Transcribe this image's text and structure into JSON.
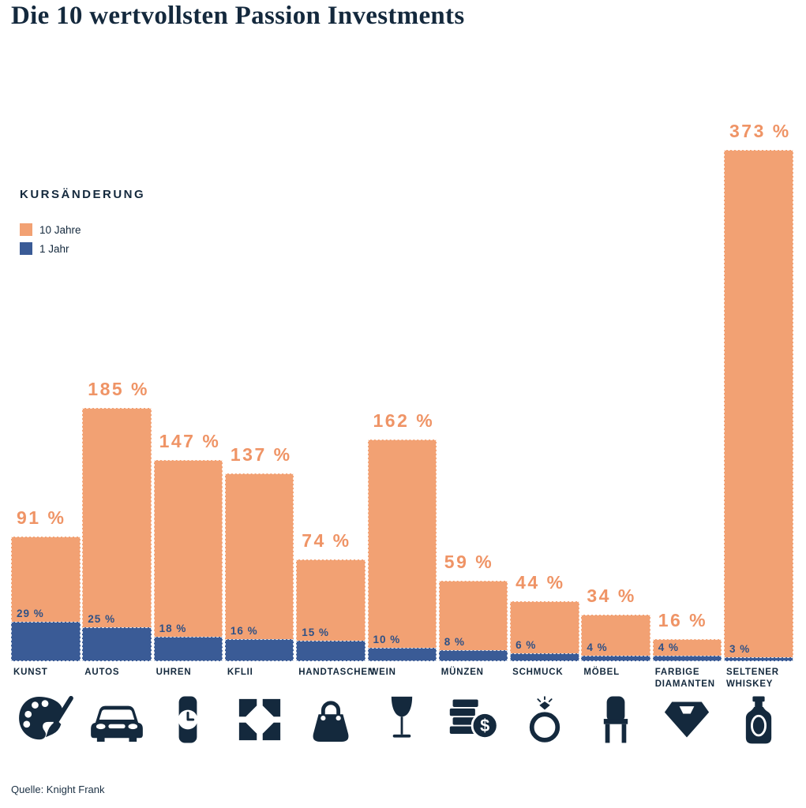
{
  "page": {
    "title": "Die 10 wertvollsten Passion Investments",
    "source": "Quelle: Knight Frank"
  },
  "legend": {
    "title": "KURSÄNDERUNG",
    "items": [
      {
        "label": "10 Jahre",
        "color": "#F2A173"
      },
      {
        "label": "1 Jahr",
        "color": "#3A5B96"
      }
    ]
  },
  "chart_data": {
    "type": "bar",
    "title": "Die 10 wertvollsten Passion Investments",
    "legend_title": "KURSÄNDERUNG",
    "legend_position": "upper-left",
    "value_suffix": " %",
    "categories": [
      "KUNST",
      "AUTOS",
      "UHREN",
      "KFLII",
      "HANDTASCHEN",
      "WEIN",
      "MÜNZEN",
      "SCHMUCK",
      "MÖBEL",
      "FARBIGE DIAMANTEN",
      "SELTENER WHISKEY"
    ],
    "series": [
      {
        "name": "10 Jahre",
        "color": "#F2A173",
        "label_color": "#EF9466",
        "values": [
          91,
          185,
          147,
          137,
          74,
          162,
          59,
          44,
          34,
          16,
          373
        ]
      },
      {
        "name": "1 Jahr",
        "color": "#3A5B96",
        "label_color": "#2F5186",
        "values": [
          29,
          25,
          18,
          16,
          15,
          10,
          8,
          6,
          4,
          4,
          3
        ]
      }
    ],
    "icons": [
      "palette-icon",
      "car-icon",
      "watch-icon",
      "kflii-logo-icon",
      "handbag-icon",
      "wine-glass-icon",
      "coins-icon",
      "ring-icon",
      "chair-icon",
      "diamond-icon",
      "whiskey-bottle-icon"
    ],
    "axis": {
      "grid": false,
      "y_axis_visible": false,
      "value_labels": "above-bars"
    },
    "colors": {
      "navy": "#14293D",
      "background": "#FFFFFF"
    },
    "source": "Quelle: Knight Frank"
  }
}
